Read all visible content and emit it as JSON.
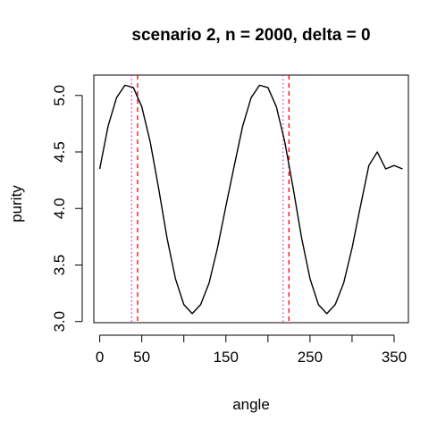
{
  "chart_data": {
    "type": "line",
    "title": "scenario 2, n = 2000, delta = 0",
    "xlabel": "angle",
    "ylabel": "purity",
    "xlim": [
      -7,
      367
    ],
    "ylim": [
      2.99,
      5.18
    ],
    "x_ticks": [
      0,
      50,
      100,
      150,
      200,
      250,
      300,
      350
    ],
    "x_tick_labels": [
      "0",
      "50",
      "",
      "150",
      "",
      "250",
      "",
      "350"
    ],
    "y_ticks": [
      3.0,
      3.5,
      4.0,
      4.5,
      5.0
    ],
    "y_tick_labels": [
      "3.0",
      "3.5",
      "4.0",
      "4.5",
      "5.0"
    ],
    "grid": false,
    "series": [
      {
        "color": "#000000",
        "x": [
          0,
          10,
          20,
          30,
          40,
          50,
          60,
          70,
          80,
          90,
          100,
          110,
          120,
          130,
          140,
          150,
          160,
          170,
          180,
          190,
          200,
          210,
          220,
          230,
          240,
          250,
          260,
          270,
          280,
          290,
          300,
          310,
          320,
          330,
          340,
          350,
          360
        ],
        "y": [
          4.35,
          4.73,
          4.98,
          5.09,
          5.07,
          4.9,
          4.59,
          4.18,
          3.74,
          3.38,
          3.15,
          3.07,
          3.15,
          3.34,
          3.65,
          4.02,
          4.38,
          4.73,
          4.98,
          5.09,
          5.07,
          4.9,
          4.59,
          4.18,
          3.74,
          3.38,
          3.15,
          3.07,
          3.15,
          3.34,
          3.65,
          4.02,
          4.38,
          4.5,
          4.35,
          4.38,
          4.35
        ]
      }
    ],
    "vlines": [
      {
        "x": 38,
        "color": "#cc33cc",
        "style": "dotted"
      },
      {
        "x": 45,
        "color": "#ff0000",
        "style": "dashed"
      },
      {
        "x": 218,
        "color": "#cc33cc",
        "style": "dotted"
      },
      {
        "x": 225,
        "color": "#ff0000",
        "style": "dashed"
      }
    ]
  }
}
